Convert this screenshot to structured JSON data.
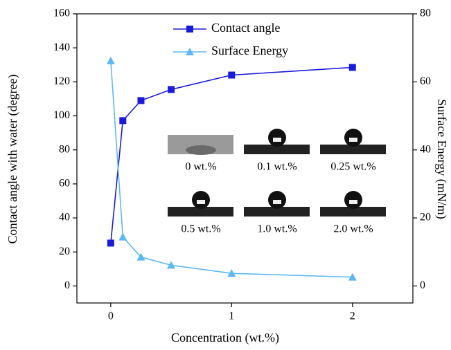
{
  "chart_data": {
    "type": "line",
    "xlabel": "Concentration (wt.%)",
    "ylabel": "Contact angle with water (degree)",
    "y2label": "Surface Energy (mN/m)",
    "x": [
      0,
      0.1,
      0.25,
      0.5,
      1,
      2
    ],
    "series": [
      {
        "name": "Contact angle",
        "color": "#1a1adb",
        "marker": "square",
        "values": [
          25.2,
          97.2,
          109,
          115.5,
          124,
          128.5
        ]
      },
      {
        "name": "Surface Energy",
        "color": "#5bb8f5",
        "marker": "triangle",
        "axis": "y2",
        "values": [
          66.2,
          14.4,
          8.5,
          6.1,
          3.7,
          2.6
        ]
      }
    ],
    "xlim": [
      -0.28,
      2.5
    ],
    "xticks": [
      0,
      1,
      2
    ],
    "ylim": [
      -10,
      160
    ],
    "yticks": [
      0,
      20,
      40,
      60,
      80,
      100,
      120,
      140,
      160
    ],
    "y2lim": [
      -5,
      80
    ],
    "y2ticks": [
      0,
      20,
      40,
      60,
      80
    ],
    "legend": "top",
    "annotations": [
      "0 wt.%",
      "0.1 wt.%",
      "0.25 wt.%",
      "0.5 wt.%",
      "1.0 wt.%",
      "2.0 wt.%"
    ]
  }
}
